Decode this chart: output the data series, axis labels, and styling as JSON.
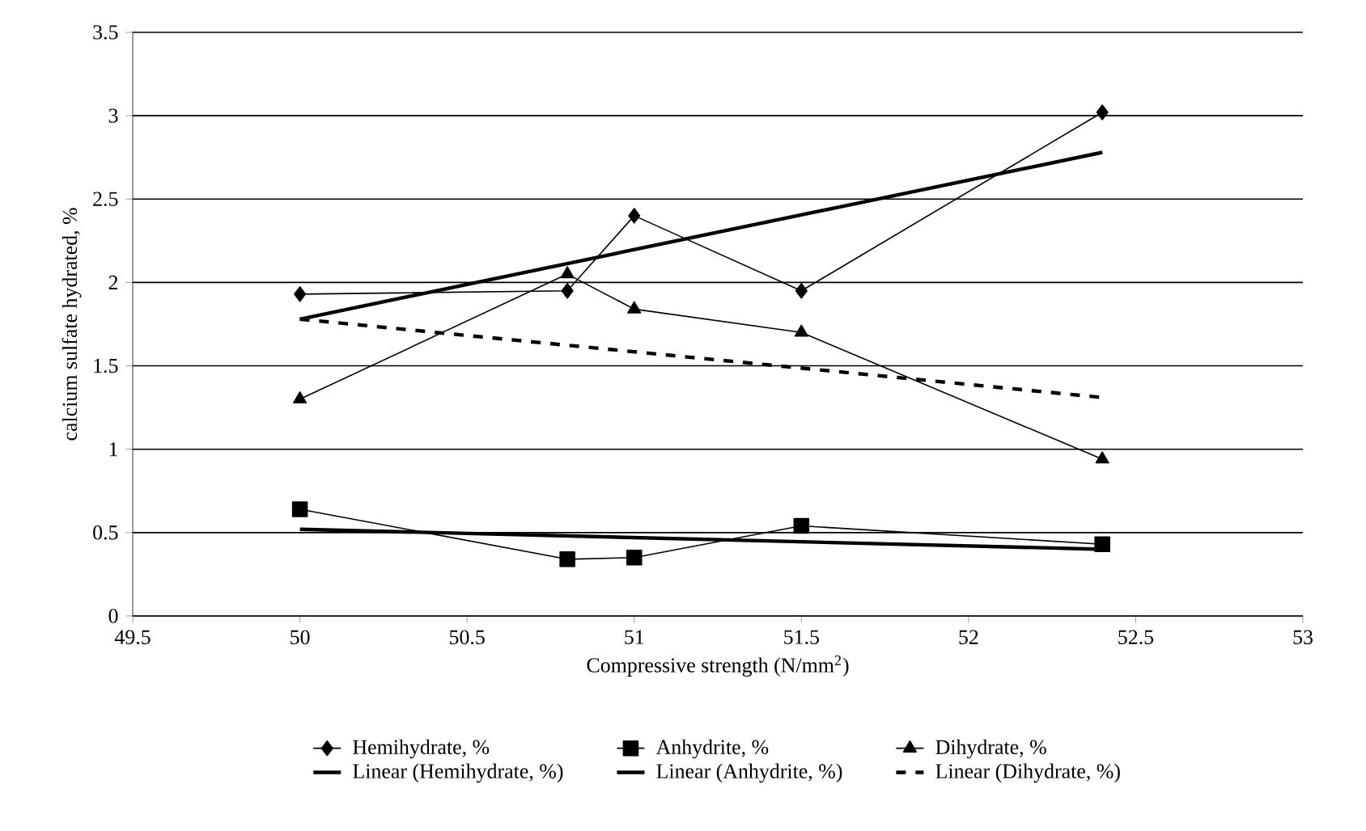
{
  "chart_data": {
    "type": "line",
    "xlabel": "Compressive strength (N/mm$^{2}$)",
    "ylabel": "calcium sulfate hydrated, %",
    "xlim": [
      49.5,
      53
    ],
    "xticks": [
      49.5,
      50,
      50.5,
      51,
      51.5,
      52,
      52.5,
      53
    ],
    "ylim": [
      0,
      3.5
    ],
    "yticks": [
      0,
      0.5,
      1,
      1.5,
      2,
      2.5,
      3,
      3.5
    ],
    "grid": "y",
    "legend": "bottom",
    "series": [
      {
        "name": "Hemihydrate, %",
        "color": "#000000",
        "marker": "diamond",
        "line_style": "solid",
        "x": [
          50,
          50.8,
          51,
          51.5,
          52.4
        ],
        "values": [
          1.93,
          1.95,
          2.4,
          1.95,
          3.02
        ]
      },
      {
        "name": "Anhydrite, %",
        "color": "#000000",
        "marker": "square",
        "line_style": "solid",
        "x": [
          50,
          50.8,
          51,
          51.5,
          52.4
        ],
        "values": [
          0.64,
          0.34,
          0.35,
          0.54,
          0.43
        ]
      },
      {
        "name": "Dihydrate, %",
        "color": "#000000",
        "marker": "triangle",
        "line_style": "solid",
        "x": [
          50,
          50.8,
          51,
          51.5,
          52.4
        ],
        "values": [
          1.3,
          2.05,
          1.84,
          1.7,
          0.94
        ]
      },
      {
        "name": "Linear (Hemihydrate, %)",
        "color": "#000000",
        "marker": "none",
        "line_style": "solid",
        "x": [
          50,
          52.4
        ],
        "values": [
          1.78,
          2.78
        ]
      },
      {
        "name": "Linear (Anhydrite, %)",
        "color": "#000000",
        "marker": "none",
        "line_style": "solid",
        "x": [
          50,
          52.4
        ],
        "values": [
          0.52,
          0.4
        ]
      },
      {
        "name": "Linear (Dihydrate, %)",
        "color": "#000000",
        "marker": "none",
        "line_style": "dashed",
        "x": [
          50,
          52.4
        ],
        "values": [
          1.78,
          1.31
        ]
      }
    ]
  }
}
